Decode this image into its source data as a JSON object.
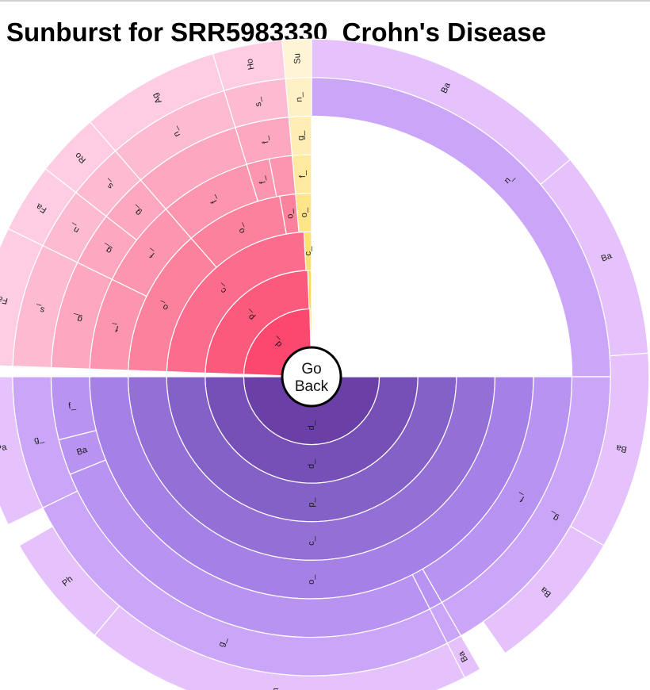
{
  "page": {
    "title": "Sunburst for SRR5983330_Crohn's Disease"
  },
  "back_button": {
    "line1": "Go",
    "line2": "Back"
  },
  "chart_data": {
    "type": "sunburst",
    "ring_count": 8,
    "colors": {
      "Bacteroidetes": [
        "#6a3fa6",
        "#7650b6",
        "#8461c7",
        "#936fd6",
        "#a580e6",
        "#b893f2",
        "#cba6f8",
        "#e6c2fd"
      ],
      "Firmicutes": [
        "#fc476f",
        "#fc5a7d",
        "#fc6d8d",
        "#fc819d",
        "#fc95ae",
        "#fda8c0",
        "#fdbbd2",
        "#fecde4"
      ],
      "Proteobacteria": [
        "#fcd23c",
        "#fdda55",
        "#fde26f",
        "#fee688",
        "#fee99e",
        "#ffedb4",
        "#fff0c6",
        "#fff4d6"
      ],
      "Actinobacteria": [
        "#f0a0ce"
      ]
    },
    "segments": [
      {
        "group": "Bacteroidetes",
        "depth": 0,
        "start": 90.0,
        "end": 270.0,
        "label": "d_"
      },
      {
        "group": "Firmicutes",
        "depth": 0,
        "start": 272.0,
        "end": 358.6,
        "label": "d_"
      },
      {
        "group": "Proteobacteria",
        "depth": 0,
        "start": 358.6,
        "end": 360.0,
        "label": ""
      },
      {
        "group": "Bacteroidetes",
        "depth": 1,
        "start": 90.0,
        "end": 270.0,
        "label": "d_"
      },
      {
        "group": "Firmicutes",
        "depth": 1,
        "start": 272.0,
        "end": 358.0,
        "label": "p_"
      },
      {
        "group": "Proteobacteria",
        "depth": 1,
        "start": 358.0,
        "end": 360.0,
        "label": "p_"
      },
      {
        "group": "Bacteroidetes",
        "depth": 2,
        "start": 90.0,
        "end": 270.0,
        "label": "p_"
      },
      {
        "group": "Firmicutes",
        "depth": 2,
        "start": 272.0,
        "end": 357.0,
        "label": "c_"
      },
      {
        "group": "Proteobacteria",
        "depth": 2,
        "start": 357.0,
        "end": 360.0,
        "label": "c_"
      },
      {
        "group": "Bacteroidetes",
        "depth": 3,
        "start": 90.0,
        "end": 270.0,
        "label": "c_"
      },
      {
        "group": "Firmicutes",
        "depth": 3,
        "start": 272.0,
        "end": 319.0,
        "label": "o_"
      },
      {
        "group": "Firmicutes",
        "depth": 3,
        "start": 319.0,
        "end": 350.0,
        "label": "o_"
      },
      {
        "group": "Firmicutes",
        "depth": 3,
        "start": 350.0,
        "end": 355.0,
        "label": "o_"
      },
      {
        "group": "Proteobacteria",
        "depth": 3,
        "start": 355.0,
        "end": 360.0,
        "label": "o_"
      },
      {
        "group": "Bacteroidetes",
        "depth": 4,
        "start": 90.0,
        "end": 270.0,
        "label": "o_"
      },
      {
        "group": "Firmicutes",
        "depth": 4,
        "start": 272.0,
        "end": 296.0,
        "label": "f_"
      },
      {
        "group": "Firmicutes",
        "depth": 4,
        "start": 296.0,
        "end": 319.0,
        "label": "f_"
      },
      {
        "group": "Firmicutes",
        "depth": 4,
        "start": 319.0,
        "end": 343.0,
        "label": "f_"
      },
      {
        "group": "Firmicutes",
        "depth": 4,
        "start": 343.0,
        "end": 349.0,
        "label": "f_"
      },
      {
        "group": "Firmicutes",
        "depth": 4,
        "start": 349.0,
        "end": 355.0,
        "label": ""
      },
      {
        "group": "Proteobacteria",
        "depth": 4,
        "start": 355.0,
        "end": 360.0,
        "label": "f_"
      },
      {
        "group": "Bacteroidetes",
        "depth": 5,
        "start": 90.0,
        "end": 150.0,
        "label": "f_"
      },
      {
        "group": "Bacteroidetes",
        "depth": 5,
        "start": 150.0,
        "end": 153.0,
        "label": ""
      },
      {
        "group": "Bacteroidetes",
        "depth": 5,
        "start": 153.0,
        "end": 248.0,
        "label": ""
      },
      {
        "group": "Bacteroidetes",
        "depth": 5,
        "start": 248.0,
        "end": 256.0,
        "label": "Ba"
      },
      {
        "group": "Bacteroidetes",
        "depth": 5,
        "start": 256.0,
        "end": 270.0,
        "label": "f_"
      },
      {
        "group": "Firmicutes",
        "depth": 5,
        "start": 272.0,
        "end": 296.0,
        "label": "g_"
      },
      {
        "group": "Firmicutes",
        "depth": 5,
        "start": 296.0,
        "end": 308.0,
        "label": "g_"
      },
      {
        "group": "Firmicutes",
        "depth": 5,
        "start": 308.0,
        "end": 319.0,
        "label": "g_"
      },
      {
        "group": "Firmicutes",
        "depth": 5,
        "start": 319.0,
        "end": 343.0,
        "label": ""
      },
      {
        "group": "Firmicutes",
        "depth": 5,
        "start": 343.0,
        "end": 355.0,
        "label": "f_"
      },
      {
        "group": "Proteobacteria",
        "depth": 5,
        "start": 355.0,
        "end": 360.0,
        "label": "g_"
      },
      {
        "group": "Bacteroidetes",
        "depth": 6,
        "start": 0.0,
        "end": 90.0,
        "label": "n_"
      },
      {
        "group": "Bacteroidetes",
        "depth": 6,
        "start": 90.0,
        "end": 150.0,
        "label": "g_"
      },
      {
        "group": "Bacteroidetes",
        "depth": 6,
        "start": 150.0,
        "end": 153.0,
        "label": ""
      },
      {
        "group": "Bacteroidetes",
        "depth": 6,
        "start": 153.0,
        "end": 244.0,
        "label": "g_"
      },
      {
        "group": "Bacteroidetes",
        "depth": 6,
        "start": 244.0,
        "end": 270.0,
        "label": "g_"
      },
      {
        "group": "Firmicutes",
        "depth": 6,
        "start": 272.0,
        "end": 296.0,
        "label": "s_"
      },
      {
        "group": "Firmicutes",
        "depth": 6,
        "start": 296.0,
        "end": 308.0,
        "label": "n_"
      },
      {
        "group": "Firmicutes",
        "depth": 6,
        "start": 308.0,
        "end": 319.0,
        "label": "s_"
      },
      {
        "group": "Firmicutes",
        "depth": 6,
        "start": 319.0,
        "end": 343.0,
        "label": "n_"
      },
      {
        "group": "Firmicutes",
        "depth": 6,
        "start": 343.0,
        "end": 355.0,
        "label": "s_"
      },
      {
        "group": "Proteobacteria",
        "depth": 6,
        "start": 355.0,
        "end": 360.0,
        "label": "n_"
      },
      {
        "group": "Bacteroidetes",
        "depth": 7,
        "start": 0.0,
        "end": 50.0,
        "label": "Ba"
      },
      {
        "group": "Bacteroidetes",
        "depth": 7,
        "start": 50.0,
        "end": 86.0,
        "label": "Ba"
      },
      {
        "group": "Bacteroidetes",
        "depth": 7,
        "start": 86.0,
        "end": 120.0,
        "label": "Ba"
      },
      {
        "group": "Bacteroidetes",
        "depth": 7,
        "start": 120.0,
        "end": 145.0,
        "label": "Ba"
      },
      {
        "group": "Bacteroidetes",
        "depth": 7,
        "start": 150.0,
        "end": 153.0,
        "label": "Ba"
      },
      {
        "group": "Bacteroidetes",
        "depth": 7,
        "start": 153.0,
        "end": 220.0,
        "label": "Ph"
      },
      {
        "group": "Bacteroidetes",
        "depth": 7,
        "start": 220.0,
        "end": 240.0,
        "label": "Ph"
      },
      {
        "group": "Bacteroidetes",
        "depth": 7,
        "start": 244.0,
        "end": 270.0,
        "label": "Pa"
      },
      {
        "group": "Firmicutes",
        "depth": 7,
        "start": 272.0,
        "end": 296.0,
        "label": "Fa"
      },
      {
        "group": "Firmicutes",
        "depth": 7,
        "start": 296.0,
        "end": 308.0,
        "label": "Fa"
      },
      {
        "group": "Firmicutes",
        "depth": 7,
        "start": 308.0,
        "end": 319.0,
        "label": "Ro"
      },
      {
        "group": "Firmicutes",
        "depth": 7,
        "start": 319.0,
        "end": 343.0,
        "label": "Ag"
      },
      {
        "group": "Firmicutes",
        "depth": 7,
        "start": 343.0,
        "end": 355.0,
        "label": "Ho"
      },
      {
        "group": "Proteobacteria",
        "depth": 7,
        "start": 355.0,
        "end": 360.0,
        "label": "Su"
      }
    ]
  }
}
